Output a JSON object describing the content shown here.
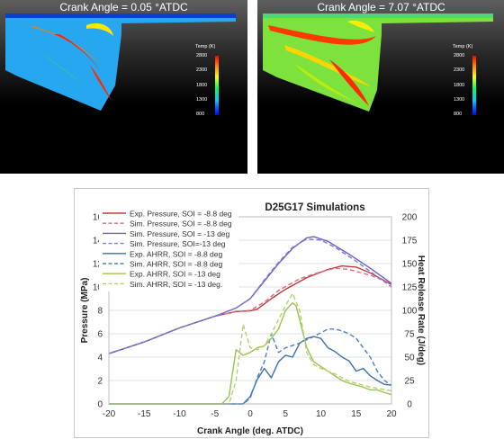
{
  "panels": [
    {
      "title": "Crank Angle = 0.05 °ATDC",
      "colorbar_title": "Temp (K)",
      "colorbar_ticks": [
        "2800",
        "2300",
        "1800",
        "1300",
        "800"
      ]
    },
    {
      "title": "Crank Angle = 7.07 °ATDC",
      "colorbar_title": "Temp (K)",
      "colorbar_ticks": [
        "2800",
        "2300",
        "1800",
        "1300",
        "800"
      ]
    }
  ],
  "chart_data": {
    "type": "line",
    "title": "D25G17 Simulations",
    "xlabel": "Crank Angle (deg. ATDC)",
    "ylabel": "Pressure (MPa)",
    "y2label": "Heat Release Rate (J/deg)",
    "xlim": [
      -20,
      20
    ],
    "ylim": [
      0,
      16
    ],
    "y2lim": [
      0,
      200
    ],
    "xticks": [
      "-20",
      "-15",
      "-10",
      "-5",
      "0",
      "5",
      "10",
      "15",
      "20"
    ],
    "yticks": [
      "0",
      "2",
      "4",
      "6",
      "8",
      "10",
      "12",
      "14",
      "16"
    ],
    "y2ticks": [
      "0",
      "25",
      "50",
      "75",
      "100",
      "125",
      "150",
      "175",
      "200"
    ],
    "grid": true,
    "legend_position": "top-left",
    "series": [
      {
        "name": "Exp. Pressure, SOI = -8.8 deg",
        "axis": "left",
        "color": "#c0393b",
        "dash": "solid",
        "points": [
          [
            -20,
            4.3
          ],
          [
            -15,
            5.3
          ],
          [
            -10,
            6.5
          ],
          [
            -5,
            7.5
          ],
          [
            -2,
            7.9
          ],
          [
            0,
            7.95
          ],
          [
            1,
            8.1
          ],
          [
            3,
            9.0
          ],
          [
            5,
            9.8
          ],
          [
            8,
            10.8
          ],
          [
            11,
            11.5
          ],
          [
            13,
            11.8
          ],
          [
            15,
            11.7
          ],
          [
            17,
            11.2
          ],
          [
            20,
            10.2
          ]
        ]
      },
      {
        "name": "Sim. Pressure, SOI = -8.8 deg",
        "axis": "left",
        "color": "#d96a80",
        "dash": "dashed",
        "points": [
          [
            -20,
            4.3
          ],
          [
            -15,
            5.3
          ],
          [
            -10,
            6.5
          ],
          [
            -5,
            7.5
          ],
          [
            -2,
            7.9
          ],
          [
            0,
            8.0
          ],
          [
            2,
            8.7
          ],
          [
            4,
            9.7
          ],
          [
            7,
            10.7
          ],
          [
            10,
            11.3
          ],
          [
            12,
            11.6
          ],
          [
            14,
            11.5
          ],
          [
            17,
            11.0
          ],
          [
            20,
            10.3
          ]
        ]
      },
      {
        "name": "Sim. Pressure, SOI = -13 deg",
        "axis": "left",
        "color": "#6a5fc4",
        "dash": "solid",
        "points": [
          [
            -20,
            4.3
          ],
          [
            -15,
            5.3
          ],
          [
            -10,
            6.5
          ],
          [
            -5,
            7.5
          ],
          [
            -2,
            8.2
          ],
          [
            0,
            9.0
          ],
          [
            2,
            10.5
          ],
          [
            4,
            12.0
          ],
          [
            6,
            13.3
          ],
          [
            8,
            14.2
          ],
          [
            9,
            14.3
          ],
          [
            11,
            13.9
          ],
          [
            14,
            12.8
          ],
          [
            17,
            11.6
          ],
          [
            20,
            10.3
          ]
        ]
      },
      {
        "name": "Sim. Pressure, SOI=-13 deg",
        "axis": "left",
        "color": "#7d7ec9",
        "dash": "dashed",
        "points": [
          [
            -20,
            4.3
          ],
          [
            -15,
            5.3
          ],
          [
            -10,
            6.5
          ],
          [
            -5,
            7.5
          ],
          [
            -2,
            8.2
          ],
          [
            0,
            9.0
          ],
          [
            2,
            10.6
          ],
          [
            4,
            12.1
          ],
          [
            6,
            13.4
          ],
          [
            8,
            14.1
          ],
          [
            10,
            14.0
          ],
          [
            12,
            13.4
          ],
          [
            15,
            12.2
          ],
          [
            20,
            10.0
          ]
        ]
      },
      {
        "name": "Exp. AHRR, SOI = -8.8 deg",
        "axis": "right",
        "color": "#3b6fb6",
        "dash": "solid",
        "points": [
          [
            -20,
            0
          ],
          [
            -5,
            0
          ],
          [
            -1,
            0
          ],
          [
            0,
            8
          ],
          [
            1,
            26
          ],
          [
            2,
            38
          ],
          [
            3,
            28
          ],
          [
            4,
            45
          ],
          [
            5,
            52
          ],
          [
            6,
            50
          ],
          [
            7,
            65
          ],
          [
            8,
            70
          ],
          [
            9,
            72
          ],
          [
            10,
            70
          ],
          [
            11,
            60
          ],
          [
            12,
            56
          ],
          [
            13,
            50
          ],
          [
            14,
            46
          ],
          [
            15,
            35
          ],
          [
            16,
            38
          ],
          [
            17,
            30
          ],
          [
            18,
            25
          ],
          [
            19,
            21
          ],
          [
            20,
            20
          ]
        ]
      },
      {
        "name": "Sim. AHRR, SOI = -8.8 deg",
        "axis": "right",
        "color": "#4d7fc4",
        "dash": "dashed",
        "points": [
          [
            -20,
            0
          ],
          [
            -1,
            0
          ],
          [
            0,
            6
          ],
          [
            1,
            28
          ],
          [
            2,
            45
          ],
          [
            3,
            75
          ],
          [
            4,
            55
          ],
          [
            5,
            60
          ],
          [
            7,
            65
          ],
          [
            9,
            72
          ],
          [
            11,
            80
          ],
          [
            12,
            80
          ],
          [
            13,
            78
          ],
          [
            14,
            75
          ],
          [
            15,
            70
          ],
          [
            16,
            60
          ],
          [
            17,
            50
          ],
          [
            18,
            35
          ],
          [
            19,
            25
          ],
          [
            20,
            20
          ]
        ]
      },
      {
        "name": "Exp. AHRR, SOI = -13 deg",
        "axis": "right",
        "color": "#9dc24e",
        "dash": "solid",
        "points": [
          [
            -20,
            0
          ],
          [
            -4,
            0
          ],
          [
            -3,
            8
          ],
          [
            -2,
            58
          ],
          [
            -1,
            52
          ],
          [
            0,
            55
          ],
          [
            1,
            60
          ],
          [
            2,
            62
          ],
          [
            3,
            70
          ],
          [
            4,
            80
          ],
          [
            5,
            100
          ],
          [
            6,
            108
          ],
          [
            6.5,
            105
          ],
          [
            7,
            90
          ],
          [
            8,
            60
          ],
          [
            9,
            45
          ],
          [
            10,
            40
          ],
          [
            11,
            35
          ],
          [
            12,
            30
          ],
          [
            13,
            25
          ],
          [
            14,
            22
          ],
          [
            15,
            20
          ],
          [
            16,
            18
          ],
          [
            17,
            15
          ],
          [
            18,
            15
          ],
          [
            19,
            12
          ],
          [
            20,
            10
          ]
        ]
      },
      {
        "name": "Sim. AHRR, SOI = -13 deg.",
        "axis": "right",
        "color": "#b2d26a",
        "dash": "dashed",
        "points": [
          [
            -20,
            0
          ],
          [
            -3,
            0
          ],
          [
            -2,
            25
          ],
          [
            -1,
            85
          ],
          [
            0,
            60
          ],
          [
            1,
            58
          ],
          [
            2,
            62
          ],
          [
            3,
            75
          ],
          [
            4,
            90
          ],
          [
            5,
            105
          ],
          [
            6,
            118
          ],
          [
            7,
            100
          ],
          [
            8,
            55
          ],
          [
            9,
            42
          ],
          [
            10,
            38
          ],
          [
            11,
            35
          ],
          [
            12,
            32
          ],
          [
            13,
            28
          ],
          [
            14,
            24
          ],
          [
            15,
            22
          ],
          [
            17,
            18
          ],
          [
            20,
            14
          ]
        ]
      }
    ]
  }
}
